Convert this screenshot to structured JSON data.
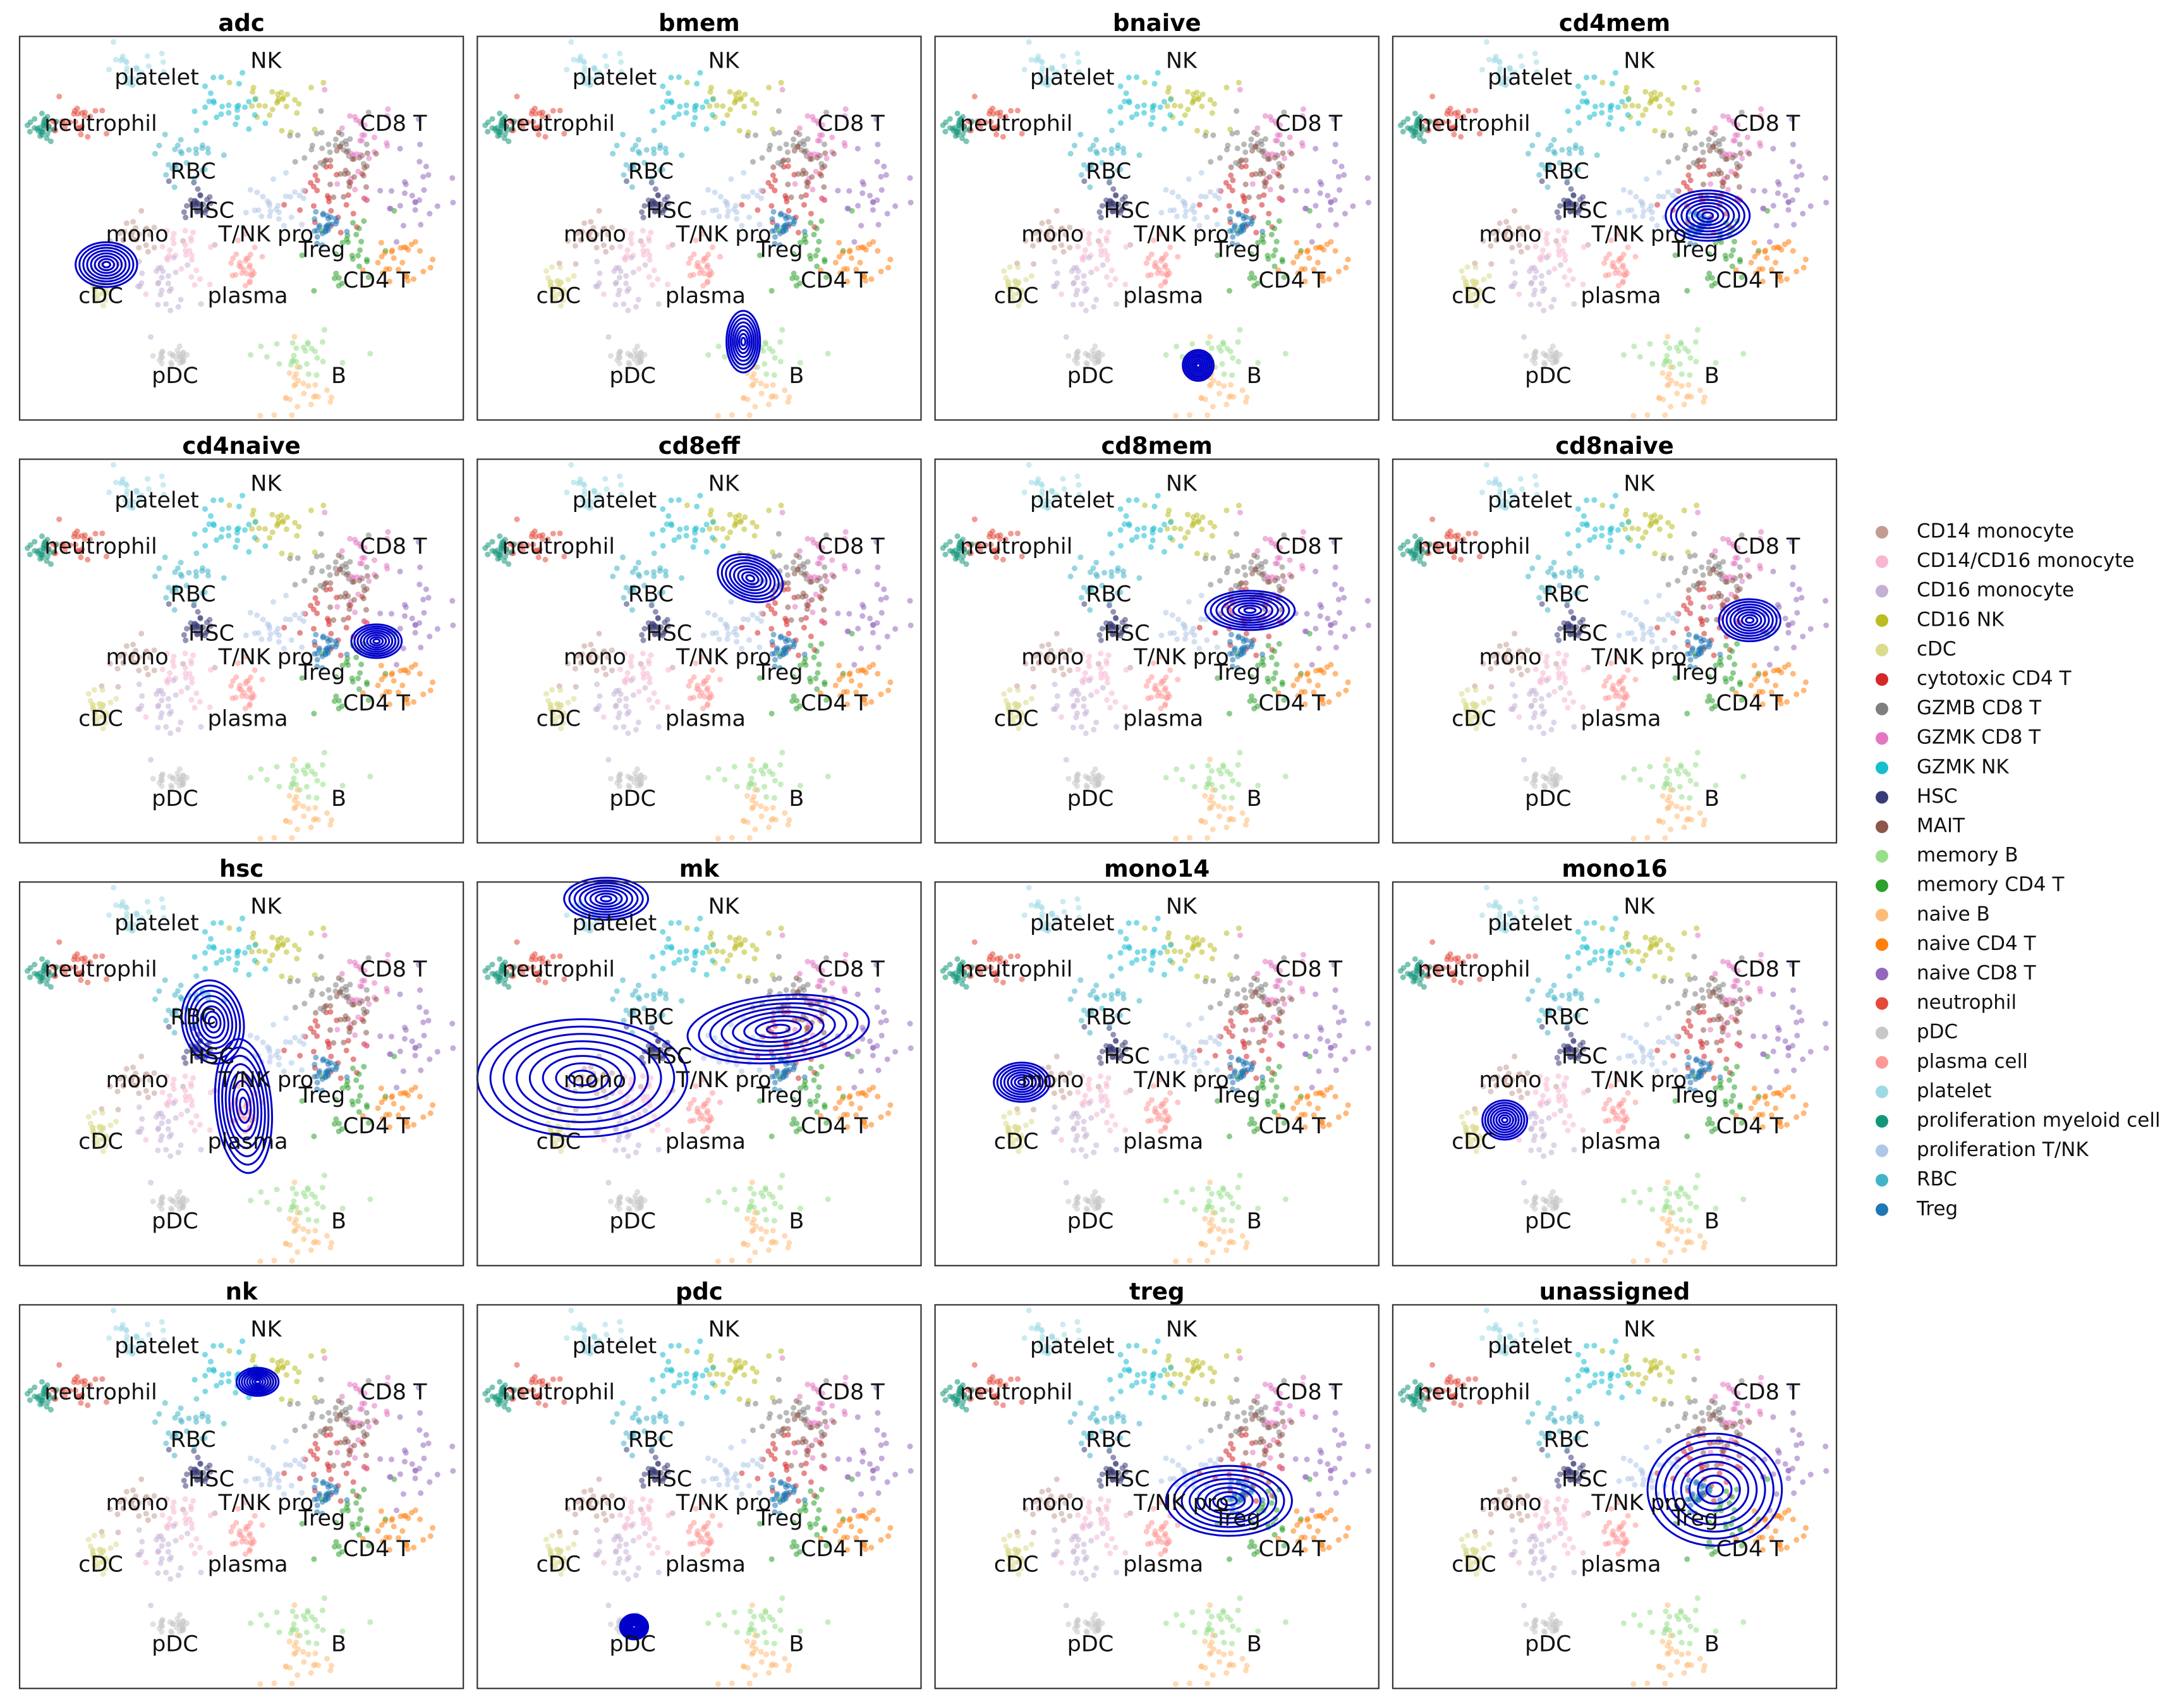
{
  "chart_data": [
    {
      "type": "scatter",
      "title": "adc"
    },
    {
      "type": "scatter",
      "title": "bmem"
    },
    {
      "type": "scatter",
      "title": "bnaive"
    },
    {
      "type": "scatter",
      "title": "cd4mem"
    },
    {
      "type": "scatter",
      "title": "cd4naive"
    },
    {
      "type": "scatter",
      "title": "cd8eff"
    },
    {
      "type": "scatter",
      "title": "cd8mem"
    },
    {
      "type": "scatter",
      "title": "cd8naive"
    },
    {
      "type": "scatter",
      "title": "hsc"
    },
    {
      "type": "scatter",
      "title": "mk"
    },
    {
      "type": "scatter",
      "title": "mono14"
    },
    {
      "type": "scatter",
      "title": "mono16"
    },
    {
      "type": "scatter",
      "title": "nk"
    },
    {
      "type": "scatter",
      "title": "pdc"
    },
    {
      "type": "scatter",
      "title": "treg"
    },
    {
      "type": "scatter",
      "title": "unassigned"
    }
  ],
  "cluster_labels": [
    "platelet",
    "NK",
    "neutrophil",
    "CD8 T",
    "RBC",
    "HSC",
    "mono",
    "T/NK pro",
    "Treg",
    "CD4 T",
    "cDC",
    "plasma",
    "pDC",
    "B"
  ],
  "legend": [
    {
      "name": "CD14 monocyte",
      "color": "#c49c94"
    },
    {
      "name": "CD14/CD16 monocyte",
      "color": "#f7b6d2"
    },
    {
      "name": "CD16 monocyte",
      "color": "#c5b0d5"
    },
    {
      "name": "CD16 NK",
      "color": "#bcbd22"
    },
    {
      "name": "cDC",
      "color": "#dbdb8d"
    },
    {
      "name": "cytotoxic CD4 T",
      "color": "#d62728"
    },
    {
      "name": "GZMB CD8 T",
      "color": "#7f7f7f"
    },
    {
      "name": "GZMK CD8 T",
      "color": "#e377c2"
    },
    {
      "name": "GZMK NK",
      "color": "#17becf"
    },
    {
      "name": "HSC",
      "color": "#393b79"
    },
    {
      "name": "MAIT",
      "color": "#8c564b"
    },
    {
      "name": "memory B",
      "color": "#98df8a"
    },
    {
      "name": "memory CD4 T",
      "color": "#2ca02c"
    },
    {
      "name": "naive B",
      "color": "#ffbb78"
    },
    {
      "name": "naive CD4 T",
      "color": "#ff7f0e"
    },
    {
      "name": "naive CD8 T",
      "color": "#9467bd"
    },
    {
      "name": "neutrophil",
      "color": "#e6493a"
    },
    {
      "name": "pDC",
      "color": "#c7c7c7"
    },
    {
      "name": "plasma cell",
      "color": "#ff9896"
    },
    {
      "name": "platelet",
      "color": "#9edae5"
    },
    {
      "name": "proliferation myeloid cell",
      "color": "#12967a"
    },
    {
      "name": "proliferation T/NK",
      "color": "#aec7e8"
    },
    {
      "name": "RBC",
      "color": "#42b4c8"
    },
    {
      "name": "Treg",
      "color": "#1f77b4"
    }
  ]
}
